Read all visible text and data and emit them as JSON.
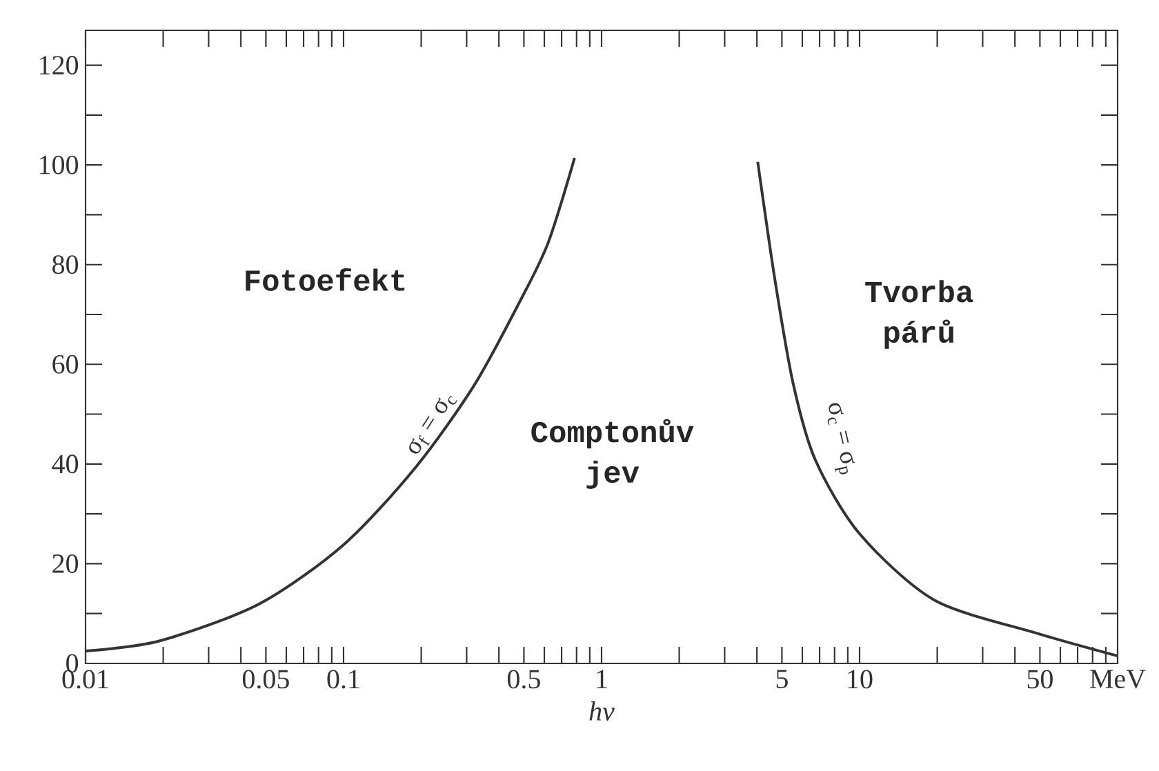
{
  "chart_data": {
    "type": "line",
    "xlabel": "*hν*",
    "log": "x",
    "marker": "none",
    "xlim": [
      0.01,
      100
    ],
    "ylim": [
      0,
      127
    ],
    "xticks": [
      {
        "value": 0.01,
        "label": "0.01"
      },
      {
        "value": 0.02,
        "label": null
      },
      {
        "value": 0.03,
        "label": null
      },
      {
        "value": 0.04,
        "label": null
      },
      {
        "value": 0.05,
        "label": "0.05"
      },
      {
        "value": 0.06,
        "label": null
      },
      {
        "value": 0.07,
        "label": null
      },
      {
        "value": 0.08,
        "label": null
      },
      {
        "value": 0.09,
        "label": null
      },
      {
        "value": 0.1,
        "label": "0.1"
      },
      {
        "value": 0.2,
        "label": null
      },
      {
        "value": 0.3,
        "label": null
      },
      {
        "value": 0.4,
        "label": null
      },
      {
        "value": 0.5,
        "label": "0.5"
      },
      {
        "value": 0.6,
        "label": null
      },
      {
        "value": 0.7,
        "label": null
      },
      {
        "value": 0.8,
        "label": null
      },
      {
        "value": 0.9,
        "label": null
      },
      {
        "value": 1,
        "label": "1"
      },
      {
        "value": 2,
        "label": null
      },
      {
        "value": 3,
        "label": null
      },
      {
        "value": 4,
        "label": null
      },
      {
        "value": 5,
        "label": "5"
      },
      {
        "value": 6,
        "label": null
      },
      {
        "value": 7,
        "label": null
      },
      {
        "value": 8,
        "label": null
      },
      {
        "value": 9,
        "label": null
      },
      {
        "value": 10,
        "label": "10"
      },
      {
        "value": 20,
        "label": null
      },
      {
        "value": 30,
        "label": null
      },
      {
        "value": 40,
        "label": null
      },
      {
        "value": 50,
        "label": "50"
      },
      {
        "value": 60,
        "label": null
      },
      {
        "value": 70,
        "label": null
      },
      {
        "value": 80,
        "label": null
      },
      {
        "value": 90,
        "label": null
      },
      {
        "value": 100,
        "label": "MeV"
      }
    ],
    "yticks": [
      0,
      {
        "value": 10,
        "label": null
      },
      20,
      {
        "value": 30,
        "label": null
      },
      40,
      {
        "value": 50,
        "label": null
      },
      60,
      {
        "value": 70,
        "label": null
      },
      80,
      {
        "value": 90,
        "label": null
      },
      100,
      {
        "value": 110,
        "label": null
      },
      120
    ],
    "series": [
      {
        "name": "σ$_{f}$ = σ$_{c}$",
        "color": "#333333",
        "x": [
          0.01,
          0.0193,
          0.047,
          0.1,
          0.19,
          0.32,
          0.48,
          0.62,
          0.786
        ],
        "values": [
          2.5,
          4.5,
          11.9,
          23.8,
          39.3,
          55.7,
          72.4,
          84.3,
          101.4
        ]
      },
      {
        "name": "σ$_{c}$ = σ$_{p}$",
        "color": "#333333",
        "x": [
          4.03,
          4.7,
          5.53,
          6.74,
          10,
          19.5,
          49,
          100
        ],
        "values": [
          100.6,
          76.9,
          56.1,
          40.8,
          26,
          12.7,
          6,
          1.5
        ]
      }
    ],
    "annotations": [
      "Fotoefekt",
      "Comptonův\njev",
      "Tvorba\npárů"
    ]
  }
}
